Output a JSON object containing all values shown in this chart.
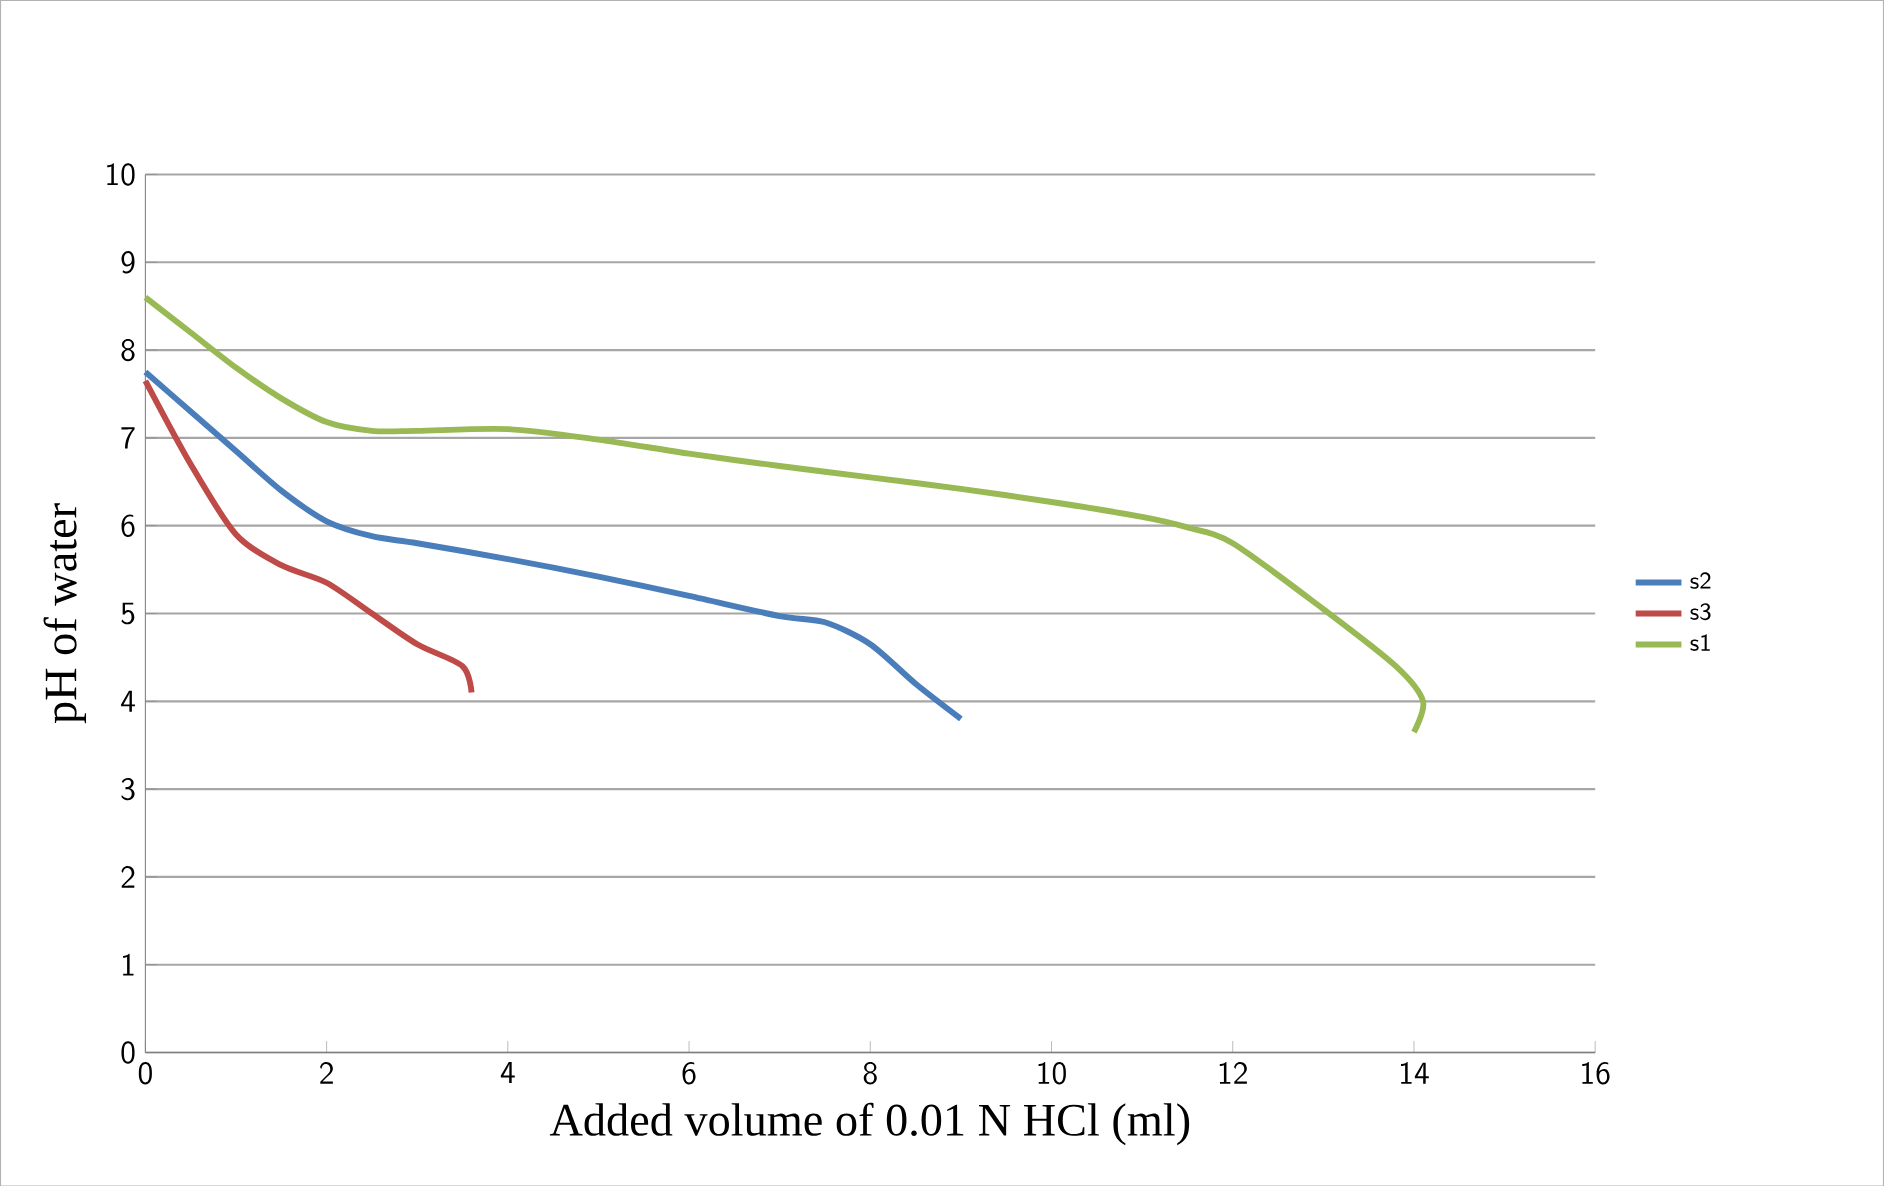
{
  "chart_data": {
    "type": "line",
    "xlabel": "Added volume of 0.01 N HCl (ml)",
    "ylabel": "pH of water",
    "xlim": [
      0,
      16
    ],
    "ylim": [
      0,
      10
    ],
    "xticks": [
      0,
      2,
      4,
      6,
      8,
      10,
      12,
      14,
      16
    ],
    "yticks": [
      0,
      1,
      2,
      3,
      4,
      5,
      6,
      7,
      8,
      9,
      10
    ],
    "grid": "y",
    "legend": "right",
    "marker": "none",
    "line_style": "solid",
    "series": [
      {
        "name": "s2",
        "color": "#4a7ebb",
        "x": [
          0,
          0.5,
          1,
          1.5,
          2,
          2.5,
          3,
          4,
          5,
          6,
          7,
          7.5,
          8,
          8.5,
          9
        ],
        "values": [
          7.75,
          7.3,
          6.85,
          6.4,
          6.05,
          5.88,
          5.8,
          5.62,
          5.42,
          5.2,
          4.97,
          4.9,
          4.65,
          4.2,
          3.8
        ]
      },
      {
        "name": "s3",
        "color": "#be4b48",
        "x": [
          0,
          0.5,
          1,
          1.5,
          2,
          2.5,
          3,
          3.5,
          3.6
        ],
        "values": [
          7.65,
          6.7,
          5.9,
          5.55,
          5.35,
          5.0,
          4.65,
          4.4,
          4.1
        ]
      },
      {
        "name": "s1",
        "color": "#98b954",
        "x": [
          0,
          0.5,
          1,
          1.5,
          2,
          2.5,
          3,
          4,
          5,
          6,
          7,
          8,
          9,
          10,
          11,
          11.5,
          12,
          13,
          13.8,
          14.1,
          14
        ],
        "values": [
          8.6,
          8.2,
          7.8,
          7.45,
          7.18,
          7.08,
          7.08,
          7.1,
          6.98,
          6.82,
          6.68,
          6.55,
          6.42,
          6.27,
          6.1,
          5.98,
          5.8,
          5.05,
          4.4,
          4.0,
          3.65
        ]
      }
    ]
  }
}
